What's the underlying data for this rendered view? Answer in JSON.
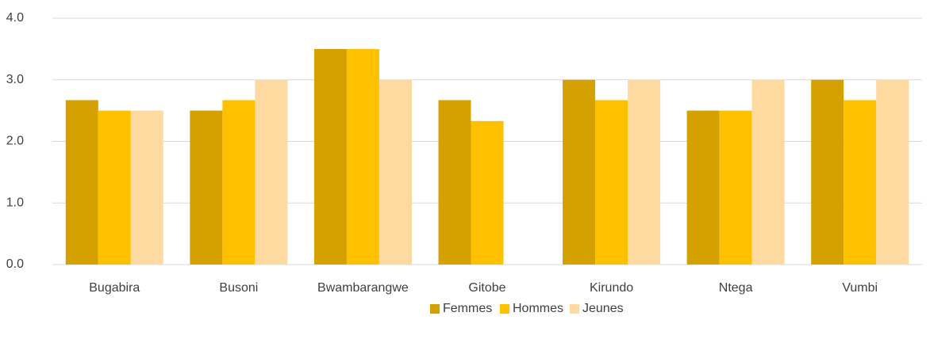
{
  "chart_data": {
    "type": "bar",
    "categories": [
      "Bugabira",
      "Busoni",
      "Bwambarangwe",
      "Gitobe",
      "Kirundo",
      "Ntega",
      "Vumbi"
    ],
    "series": [
      {
        "name": "Femmes",
        "color": "#d4a100",
        "values": [
          2.67,
          2.5,
          3.5,
          2.67,
          3.0,
          2.5,
          3.0
        ]
      },
      {
        "name": "Hommes",
        "color": "#ffc000",
        "values": [
          2.5,
          2.67,
          3.5,
          2.33,
          2.67,
          2.5,
          2.67
        ]
      },
      {
        "name": "Jeunes",
        "color": "#fed9a0",
        "values": [
          2.5,
          3.0,
          3.0,
          null,
          3.0,
          3.0,
          3.0
        ]
      }
    ],
    "ylim": [
      0,
      4
    ],
    "yticks": [
      {
        "value": 0,
        "label": "0.0"
      },
      {
        "value": 1,
        "label": "1.0"
      },
      {
        "value": 2,
        "label": "2.0"
      },
      {
        "value": 3,
        "label": "3.0"
      },
      {
        "value": 4,
        "label": "4.0"
      }
    ],
    "grid": true,
    "legend": "bottom"
  }
}
